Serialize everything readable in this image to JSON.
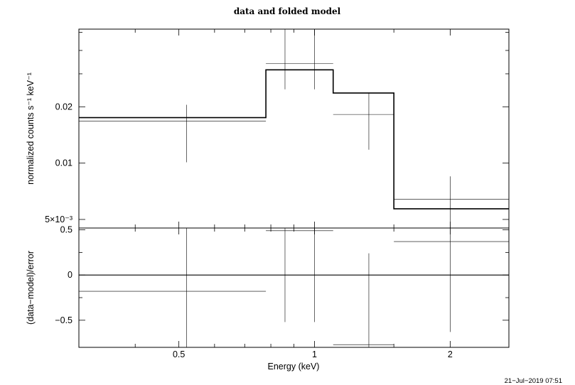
{
  "chart_data": [
    {
      "type": "scatter",
      "title": "data and folded model",
      "xlabel": "",
      "ylabel": "normalized counts s⁻¹ keV⁻¹",
      "xscale": "log",
      "yscale": "log",
      "xlim": [
        0.3,
        2.7
      ],
      "ylim": [
        0.0045,
        0.052
      ],
      "y_tick_labels": [
        "5×10⁻³",
        "0.01",
        "0.02"
      ],
      "y_tick_values": [
        0.005,
        0.01,
        0.02
      ],
      "grid": false,
      "series": [
        {
          "role": "data",
          "points": [
            {
              "x": 0.52,
              "xlo": 0.3,
              "xhi": 0.78,
              "y": 0.0168,
              "ylo": 0.0101,
              "yhi": 0.0205
            },
            {
              "x": 0.86,
              "xlo": 0.78,
              "xhi": 1.0,
              "y": 0.034,
              "ylo": 0.0248,
              "yhi": 0.052
            },
            {
              "x": 1.0,
              "xlo": 1.0,
              "xhi": 1.1,
              "y": 0.034,
              "ylo": 0.0248,
              "yhi": 0.052
            },
            {
              "x": 1.32,
              "xlo": 1.1,
              "xhi": 1.5,
              "y": 0.0182,
              "ylo": 0.0118,
              "yhi": 0.0238
            },
            {
              "x": 2.0,
              "xlo": 1.5,
              "xhi": 2.7,
              "y": 0.0064,
              "ylo": 0.0045,
              "yhi": 0.0085
            }
          ]
        },
        {
          "role": "model",
          "steps": [
            {
              "xlo": 0.3,
              "xhi": 0.78,
              "y": 0.0175
            },
            {
              "xlo": 0.78,
              "xhi": 1.1,
              "y": 0.0315
            },
            {
              "xlo": 1.1,
              "xhi": 1.5,
              "y": 0.0237
            },
            {
              "xlo": 1.5,
              "xhi": 2.7,
              "y": 0.0057
            }
          ]
        }
      ]
    },
    {
      "type": "scatter",
      "title": "",
      "xlabel": "Energy (keV)",
      "ylabel": "(data−model)/error",
      "xscale": "log",
      "xlim": [
        0.3,
        2.7
      ],
      "ylim": [
        -0.8,
        0.52
      ],
      "x_tick_labels": [
        "0.5",
        "1",
        "2"
      ],
      "x_tick_values": [
        0.5,
        1,
        2
      ],
      "y_tick_labels": [
        "0.5",
        "0",
        "−0.5"
      ],
      "y_tick_values": [
        0.5,
        0,
        -0.5
      ],
      "grid": false,
      "zero_line": 0,
      "series": [
        {
          "role": "residuals",
          "points": [
            {
              "x": 0.52,
              "xlo": 0.3,
              "xhi": 0.78,
              "y": -0.18,
              "ylo": -0.8,
              "yhi": 0.52
            },
            {
              "x": 0.86,
              "xlo": 0.78,
              "xhi": 1.0,
              "y": 0.49,
              "ylo": -0.52,
              "yhi": 0.52
            },
            {
              "x": 1.0,
              "xlo": 1.0,
              "xhi": 1.1,
              "y": 0.49,
              "ylo": -0.52,
              "yhi": 0.52
            },
            {
              "x": 1.32,
              "xlo": 1.1,
              "xhi": 1.5,
              "y": -0.77,
              "ylo": -0.8,
              "yhi": 0.24
            },
            {
              "x": 2.0,
              "xlo": 1.5,
              "xhi": 2.7,
              "y": 0.37,
              "ylo": -0.63,
              "yhi": 0.52
            }
          ]
        }
      ]
    }
  ],
  "timestamp": "21−Jul−2019 07:51"
}
